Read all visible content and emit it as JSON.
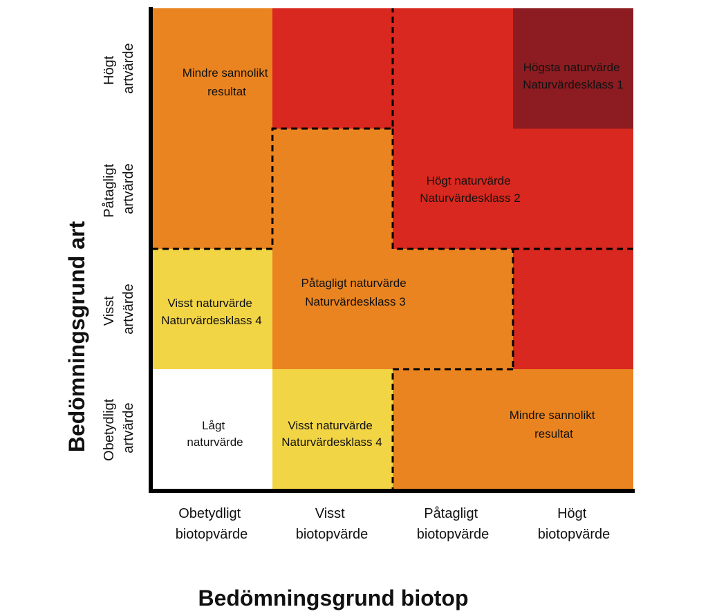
{
  "colors": {
    "orange": "#ea8420",
    "red": "#d9281f",
    "dark_red": "#8c1c21",
    "yellow": "#f2d545",
    "white": "#ffffff",
    "axis": "#000000"
  },
  "axes": {
    "y_title": "Bedömningsgrund art",
    "x_title": "Bedömningsgrund biotop",
    "rows": [
      {
        "line1": "Högt",
        "line2": "artvärde"
      },
      {
        "line1": "Påtagligt",
        "line2": "artvärde"
      },
      {
        "line1": "Visst",
        "line2": "artvärde"
      },
      {
        "line1": "Obetydligt",
        "line2": "artvärde"
      }
    ],
    "columns": [
      {
        "line1": "Obetydligt",
        "line2": "biotopvärde"
      },
      {
        "line1": "Visst",
        "line2": "biotopvärde"
      },
      {
        "line1": "Påtagligt",
        "line2": "biotopvärde"
      },
      {
        "line1": "Högt",
        "line2": "biotopvärde"
      }
    ]
  },
  "regions": [
    {
      "id": "mindre-sannolikt-top",
      "line1": "Mindre sannolikt",
      "line2": "resultat"
    },
    {
      "id": "hogsta-naturvarde",
      "line1": "Högsta  naturvärde",
      "line2": "Naturvärdesklass 1"
    },
    {
      "id": "hogt-naturvarde",
      "line1": "Högt  naturvärde",
      "line2": "Naturvärdesklass 2"
    },
    {
      "id": "patagligt-naturvarde",
      "line1": "Påtagligt naturvärde",
      "line2": "Naturvärdesklass 3"
    },
    {
      "id": "visst-naturvarde-left",
      "line1": "Visst naturvärde",
      "line2": "Naturvärdesklass 4"
    },
    {
      "id": "lagt-naturvarde",
      "line1": "Lågt",
      "line2": "naturvärde"
    },
    {
      "id": "visst-naturvarde-bottom",
      "line1": "Visst naturvärde",
      "line2": "Naturvärdesklass 4"
    },
    {
      "id": "mindre-sannolikt-bottom",
      "line1": "Mindre sannolikt",
      "line2": "resultat"
    }
  ]
}
